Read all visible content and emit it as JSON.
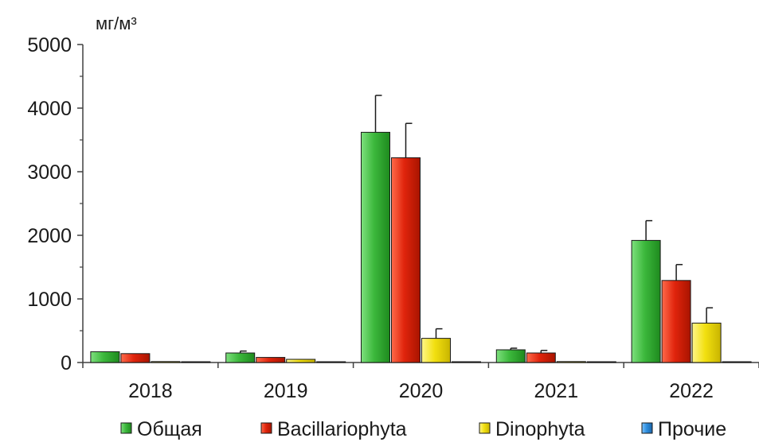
{
  "chart_data": {
    "type": "bar",
    "ylabel": "мг/м³",
    "ylim": [
      0,
      5000
    ],
    "yticks": [
      "0",
      "1000",
      "2000",
      "3000",
      "4000",
      "5000"
    ],
    "categories": [
      "2018",
      "2019",
      "2020",
      "2021",
      "2022"
    ],
    "legend_position": "bottom",
    "grid": false,
    "series": [
      {
        "name": "Общая",
        "color": "#3cb83c",
        "values": [
          170,
          150,
          3620,
          200,
          1920
        ],
        "errors": [
          0,
          30,
          580,
          25,
          310
        ]
      },
      {
        "name": "Bacillariophyta",
        "color": "#e0240c",
        "values": [
          140,
          80,
          3220,
          150,
          1290
        ],
        "errors": [
          0,
          0,
          540,
          40,
          250
        ]
      },
      {
        "name": "Dinophyta",
        "color": "#f2e010",
        "values": [
          15,
          50,
          380,
          15,
          620
        ],
        "errors": [
          0,
          0,
          150,
          0,
          240
        ]
      },
      {
        "name": "Прочие",
        "color": "#2f8fdf",
        "values": [
          5,
          5,
          5,
          5,
          5
        ],
        "errors": [
          0,
          0,
          0,
          0,
          0
        ]
      }
    ]
  }
}
